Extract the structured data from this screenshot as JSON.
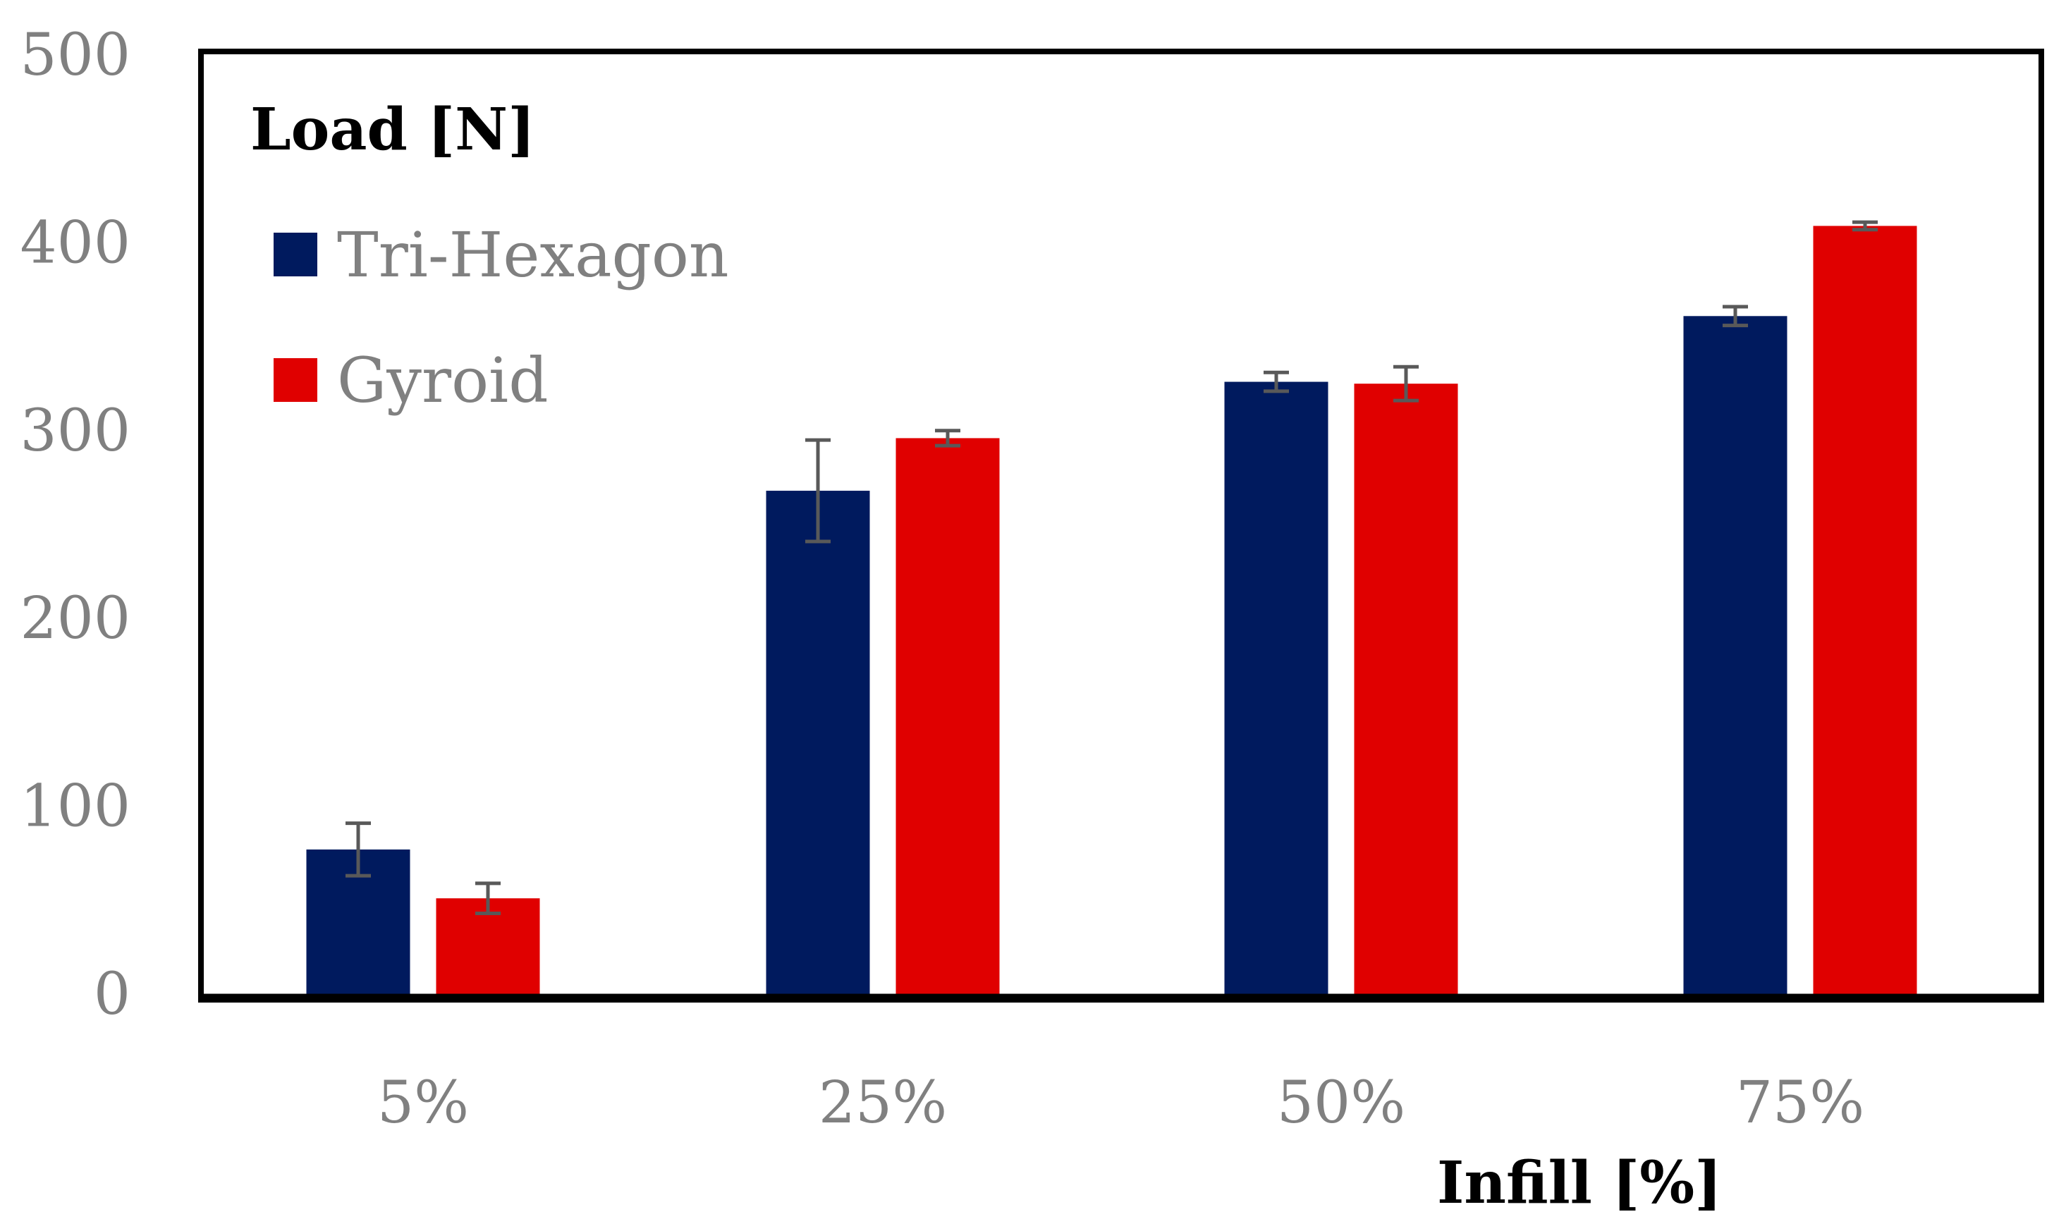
{
  "chart_data": {
    "type": "bar",
    "ylabel": "Load [N]",
    "xlabel": "Infill [%]",
    "categories": [
      "5%",
      "25%",
      "50%",
      "75%"
    ],
    "ylim": [
      0,
      500
    ],
    "yticks": [
      "0",
      "100",
      "200",
      "300",
      "400",
      "500"
    ],
    "ytick_values": [
      0,
      100,
      200,
      300,
      400,
      500
    ],
    "grid": false,
    "legend_placement": "top-left",
    "series": [
      {
        "name": "Tri-Hexagon",
        "color": "#001a5e",
        "values": [
          77,
          268,
          326,
          361
        ],
        "errors": [
          14,
          27,
          5,
          5
        ]
      },
      {
        "name": "Gyroid",
        "color": "#e00000",
        "values": [
          51,
          296,
          325,
          409
        ],
        "errors": [
          8,
          4,
          9,
          2
        ]
      }
    ],
    "error_bar_color": "#595959"
  }
}
